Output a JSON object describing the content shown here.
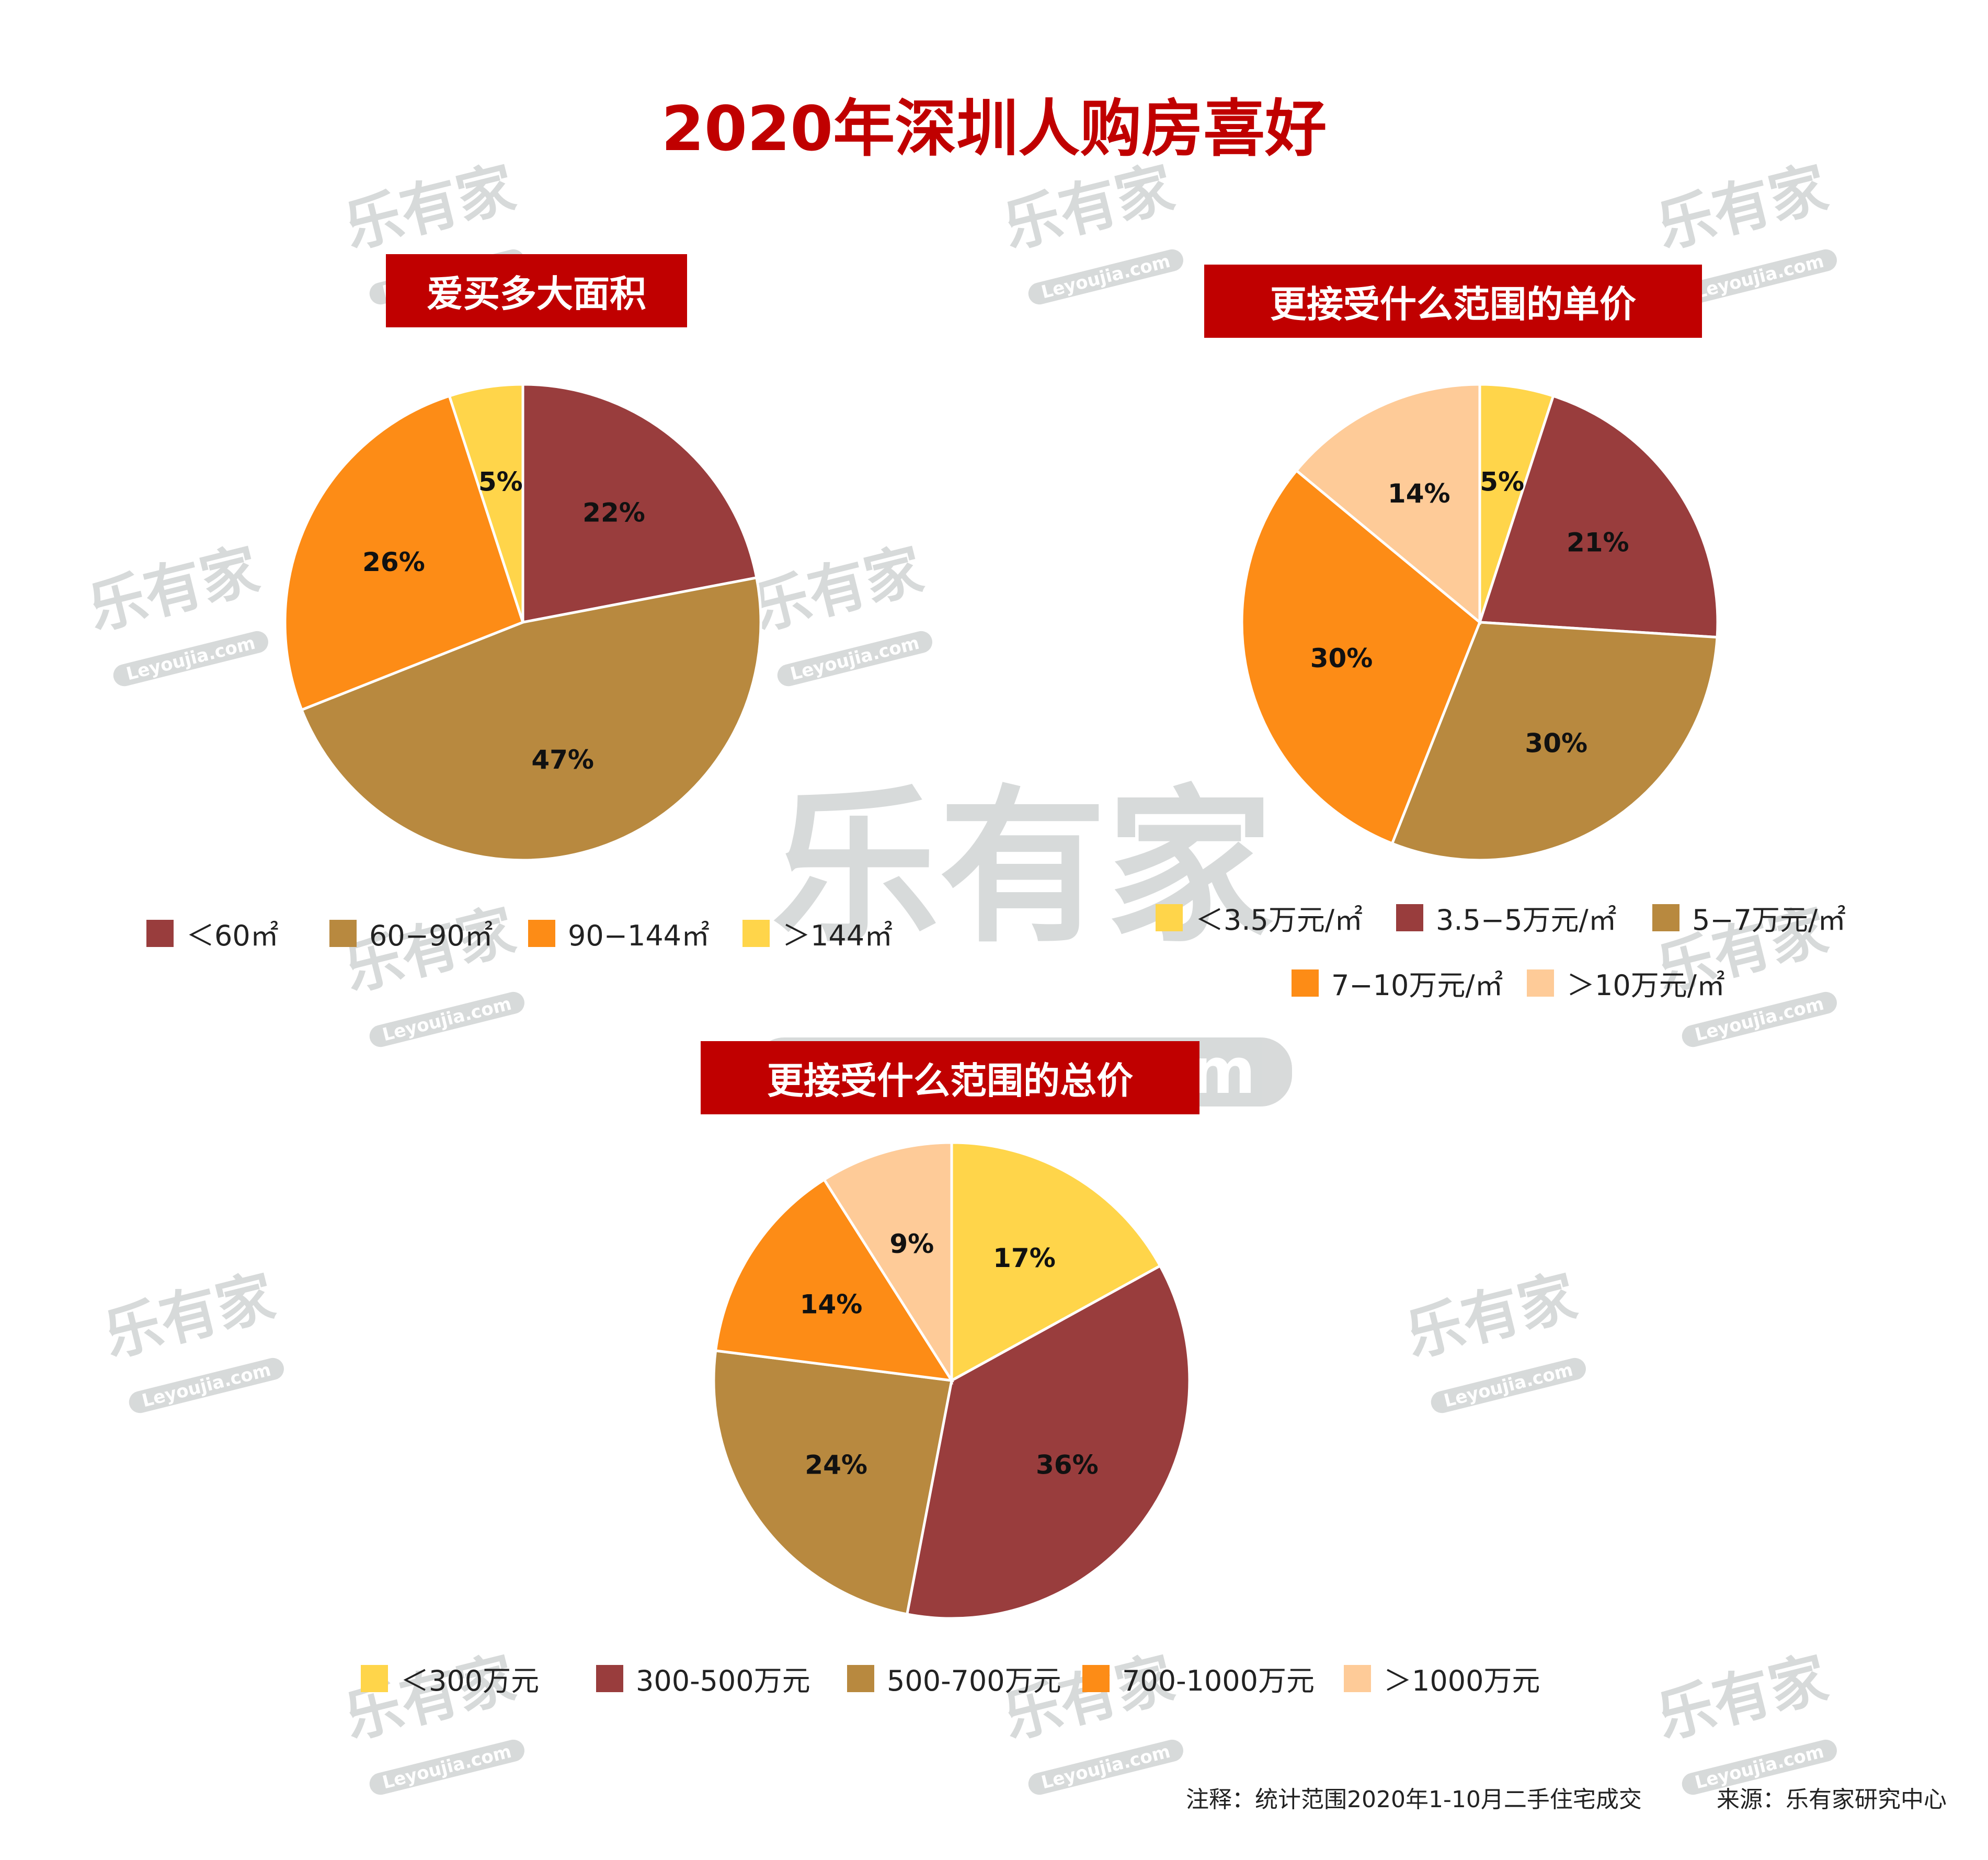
{
  "title": "2020年深圳人购房喜好",
  "watermark": {
    "main": "乐有家",
    "sub": "Leyoujia.com",
    "mark": "®"
  },
  "colors": {
    "title_red": "#c00000",
    "dark_red": "#993d3d",
    "tan": "#b8893f",
    "orange": "#fd8c16",
    "yellow": "#ffd54a",
    "peach": "#fecb98"
  },
  "chart_data": [
    {
      "type": "pie",
      "title": "爱买多大面积",
      "categories": [
        "＜60㎡",
        "60−90㎡",
        "90−144㎡",
        "＞144㎡"
      ],
      "values": [
        22,
        47,
        26,
        5
      ],
      "labels": [
        "22%",
        "47%",
        "26%",
        "5%"
      ],
      "colors": [
        "#993d3d",
        "#b8893f",
        "#fd8c16",
        "#ffd54a"
      ],
      "start": "top",
      "direction": "clockwise",
      "legend_position": "bottom"
    },
    {
      "type": "pie",
      "title": "更接受什么范围的单价",
      "categories": [
        "＜3.5万元/㎡",
        "3.5−5万元/㎡",
        "5−7万元/㎡",
        "7−10万元/㎡",
        "＞10万元/㎡"
      ],
      "values": [
        5,
        21,
        30,
        30,
        14
      ],
      "labels": [
        "5%",
        "21%",
        "30%",
        "30%",
        "14%"
      ],
      "colors": [
        "#ffd54a",
        "#993d3d",
        "#b8893f",
        "#fd8c16",
        "#fecb98"
      ],
      "start": "top",
      "direction": "clockwise",
      "legend_position": "bottom"
    },
    {
      "type": "pie",
      "title": "更接受什么范围的总价",
      "categories": [
        "＜300万元",
        "300-500万元",
        "500-700万元",
        "700-1000万元",
        "＞1000万元"
      ],
      "values": [
        17,
        36,
        24,
        14,
        9
      ],
      "labels": [
        "17%",
        "36%",
        "24%",
        "14%",
        "9%"
      ],
      "colors": [
        "#ffd54a",
        "#993d3d",
        "#b8893f",
        "#fd8c16",
        "#fecb98"
      ],
      "start": "top",
      "direction": "clockwise",
      "legend_position": "bottom"
    }
  ],
  "footer": {
    "note": "注释：统计范围2020年1-10月二手住宅成交",
    "source": "来源：乐有家研究中心"
  }
}
